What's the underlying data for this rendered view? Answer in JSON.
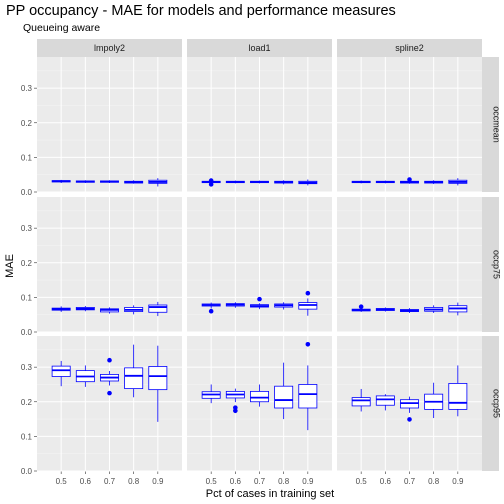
{
  "chart_data": {
    "type": "boxplot",
    "title": "PP occupancy - MAE for models and performance measures",
    "subtitle": "Queueing aware",
    "xlabel": "Pct of cases in training set",
    "ylabel": "MAE",
    "x_categories": [
      "0.5",
      "0.6",
      "0.7",
      "0.8",
      "0.9"
    ],
    "columns": [
      "lmpoly2",
      "load1",
      "spline2"
    ],
    "rows": [
      "occmean",
      "occp75",
      "occp95"
    ],
    "ylim": [
      0,
      0.39
    ],
    "yticks": [
      "0.0",
      "0.1",
      "0.2",
      "0.3"
    ],
    "box_color": "#0000ff",
    "panel_background": "#ebebeb",
    "strip_background": "#d9d9d9",
    "grid": true,
    "panels": [
      {
        "model": "lmpoly2",
        "measure": "occmean",
        "boxes": [
          {
            "x": "0.5",
            "min": 0.026,
            "q1": 0.029,
            "median": 0.031,
            "q3": 0.033,
            "max": 0.035,
            "outliers": []
          },
          {
            "x": "0.6",
            "min": 0.026,
            "q1": 0.028,
            "median": 0.03,
            "q3": 0.032,
            "max": 0.034,
            "outliers": []
          },
          {
            "x": "0.7",
            "min": 0.026,
            "q1": 0.028,
            "median": 0.03,
            "q3": 0.032,
            "max": 0.034,
            "outliers": []
          },
          {
            "x": "0.8",
            "min": 0.024,
            "q1": 0.026,
            "median": 0.028,
            "q3": 0.031,
            "max": 0.034,
            "outliers": []
          },
          {
            "x": "0.9",
            "min": 0.016,
            "q1": 0.025,
            "median": 0.029,
            "q3": 0.034,
            "max": 0.04,
            "outliers": []
          }
        ]
      },
      {
        "model": "load1",
        "measure": "occmean",
        "boxes": [
          {
            "x": "0.5",
            "min": 0.024,
            "q1": 0.027,
            "median": 0.029,
            "q3": 0.031,
            "max": 0.033,
            "outliers": [
              0.022,
              0.033
            ]
          },
          {
            "x": "0.6",
            "min": 0.025,
            "q1": 0.027,
            "median": 0.029,
            "q3": 0.031,
            "max": 0.033,
            "outliers": []
          },
          {
            "x": "0.7",
            "min": 0.025,
            "q1": 0.027,
            "median": 0.029,
            "q3": 0.031,
            "max": 0.033,
            "outliers": []
          },
          {
            "x": "0.8",
            "min": 0.022,
            "q1": 0.026,
            "median": 0.028,
            "q3": 0.031,
            "max": 0.034,
            "outliers": []
          },
          {
            "x": "0.9",
            "min": 0.019,
            "q1": 0.024,
            "median": 0.027,
            "q3": 0.031,
            "max": 0.036,
            "outliers": []
          }
        ]
      },
      {
        "model": "spline2",
        "measure": "occmean",
        "boxes": [
          {
            "x": "0.5",
            "min": 0.025,
            "q1": 0.027,
            "median": 0.029,
            "q3": 0.031,
            "max": 0.033,
            "outliers": []
          },
          {
            "x": "0.6",
            "min": 0.025,
            "q1": 0.027,
            "median": 0.029,
            "q3": 0.031,
            "max": 0.033,
            "outliers": []
          },
          {
            "x": "0.7",
            "min": 0.024,
            "q1": 0.026,
            "median": 0.028,
            "q3": 0.031,
            "max": 0.033,
            "outliers": [
              0.036
            ]
          },
          {
            "x": "0.8",
            "min": 0.023,
            "q1": 0.026,
            "median": 0.028,
            "q3": 0.031,
            "max": 0.034,
            "outliers": []
          },
          {
            "x": "0.9",
            "min": 0.019,
            "q1": 0.025,
            "median": 0.029,
            "q3": 0.034,
            "max": 0.04,
            "outliers": []
          }
        ]
      },
      {
        "model": "lmpoly2",
        "measure": "occp75",
        "boxes": [
          {
            "x": "0.5",
            "min": 0.058,
            "q1": 0.063,
            "median": 0.066,
            "q3": 0.069,
            "max": 0.074,
            "outliers": []
          },
          {
            "x": "0.6",
            "min": 0.06,
            "q1": 0.064,
            "median": 0.067,
            "q3": 0.071,
            "max": 0.075,
            "outliers": []
          },
          {
            "x": "0.7",
            "min": 0.053,
            "q1": 0.058,
            "median": 0.064,
            "q3": 0.067,
            "max": 0.071,
            "outliers": []
          },
          {
            "x": "0.8",
            "min": 0.051,
            "q1": 0.059,
            "median": 0.064,
            "q3": 0.071,
            "max": 0.077,
            "outliers": []
          },
          {
            "x": "0.9",
            "min": 0.046,
            "q1": 0.057,
            "median": 0.072,
            "q3": 0.078,
            "max": 0.087,
            "outliers": []
          }
        ]
      },
      {
        "model": "load1",
        "measure": "occp75",
        "boxes": [
          {
            "x": "0.5",
            "min": 0.068,
            "q1": 0.075,
            "median": 0.078,
            "q3": 0.081,
            "max": 0.085,
            "outliers": [
              0.06
            ]
          },
          {
            "x": "0.6",
            "min": 0.07,
            "q1": 0.075,
            "median": 0.079,
            "q3": 0.082,
            "max": 0.086,
            "outliers": []
          },
          {
            "x": "0.7",
            "min": 0.066,
            "q1": 0.072,
            "median": 0.075,
            "q3": 0.079,
            "max": 0.083,
            "outliers": [
              0.095
            ]
          },
          {
            "x": "0.8",
            "min": 0.065,
            "q1": 0.072,
            "median": 0.077,
            "q3": 0.081,
            "max": 0.086,
            "outliers": []
          },
          {
            "x": "0.9",
            "min": 0.047,
            "q1": 0.066,
            "median": 0.078,
            "q3": 0.085,
            "max": 0.097,
            "outliers": [
              0.112
            ]
          }
        ]
      },
      {
        "model": "spline2",
        "measure": "occp75",
        "boxes": [
          {
            "x": "0.5",
            "min": 0.058,
            "q1": 0.061,
            "median": 0.063,
            "q3": 0.066,
            "max": 0.07,
            "outliers": [
              0.073
            ]
          },
          {
            "x": "0.6",
            "min": 0.059,
            "q1": 0.062,
            "median": 0.065,
            "q3": 0.068,
            "max": 0.071,
            "outliers": []
          },
          {
            "x": "0.7",
            "min": 0.055,
            "q1": 0.059,
            "median": 0.062,
            "q3": 0.065,
            "max": 0.069,
            "outliers": []
          },
          {
            "x": "0.8",
            "min": 0.055,
            "q1": 0.06,
            "median": 0.065,
            "q3": 0.071,
            "max": 0.077,
            "outliers": []
          },
          {
            "x": "0.9",
            "min": 0.048,
            "q1": 0.058,
            "median": 0.068,
            "q3": 0.076,
            "max": 0.085,
            "outliers": []
          }
        ]
      },
      {
        "model": "lmpoly2",
        "measure": "occp95",
        "boxes": [
          {
            "x": "0.5",
            "min": 0.245,
            "q1": 0.273,
            "median": 0.291,
            "q3": 0.303,
            "max": 0.318,
            "outliers": []
          },
          {
            "x": "0.6",
            "min": 0.243,
            "q1": 0.258,
            "median": 0.273,
            "q3": 0.29,
            "max": 0.305,
            "outliers": []
          },
          {
            "x": "0.7",
            "min": 0.247,
            "q1": 0.26,
            "median": 0.27,
            "q3": 0.279,
            "max": 0.289,
            "outliers": [
              0.32,
              0.225
            ]
          },
          {
            "x": "0.8",
            "min": 0.213,
            "q1": 0.238,
            "median": 0.275,
            "q3": 0.298,
            "max": 0.365,
            "outliers": []
          },
          {
            "x": "0.9",
            "min": 0.142,
            "q1": 0.235,
            "median": 0.274,
            "q3": 0.302,
            "max": 0.362,
            "outliers": []
          }
        ]
      },
      {
        "model": "load1",
        "measure": "occp95",
        "boxes": [
          {
            "x": "0.5",
            "min": 0.196,
            "q1": 0.21,
            "median": 0.221,
            "q3": 0.229,
            "max": 0.25,
            "outliers": []
          },
          {
            "x": "0.6",
            "min": 0.199,
            "q1": 0.211,
            "median": 0.221,
            "q3": 0.23,
            "max": 0.238,
            "outliers": [
              0.183,
              0.174
            ]
          },
          {
            "x": "0.7",
            "min": 0.186,
            "q1": 0.2,
            "median": 0.212,
            "q3": 0.23,
            "max": 0.25,
            "outliers": []
          },
          {
            "x": "0.8",
            "min": 0.15,
            "q1": 0.182,
            "median": 0.205,
            "q3": 0.245,
            "max": 0.313,
            "outliers": []
          },
          {
            "x": "0.9",
            "min": 0.118,
            "q1": 0.182,
            "median": 0.222,
            "q3": 0.25,
            "max": 0.305,
            "outliers": [
              0.366
            ]
          }
        ]
      },
      {
        "model": "spline2",
        "measure": "occp95",
        "boxes": [
          {
            "x": "0.5",
            "min": 0.172,
            "q1": 0.188,
            "median": 0.204,
            "q3": 0.212,
            "max": 0.237,
            "outliers": []
          },
          {
            "x": "0.6",
            "min": 0.175,
            "q1": 0.19,
            "median": 0.207,
            "q3": 0.217,
            "max": 0.222,
            "outliers": []
          },
          {
            "x": "0.7",
            "min": 0.168,
            "q1": 0.182,
            "median": 0.196,
            "q3": 0.206,
            "max": 0.215,
            "outliers": [
              0.149
            ]
          },
          {
            "x": "0.8",
            "min": 0.153,
            "q1": 0.178,
            "median": 0.2,
            "q3": 0.222,
            "max": 0.255,
            "outliers": []
          },
          {
            "x": "0.9",
            "min": 0.158,
            "q1": 0.178,
            "median": 0.197,
            "q3": 0.253,
            "max": 0.305,
            "outliers": []
          }
        ]
      }
    ]
  }
}
